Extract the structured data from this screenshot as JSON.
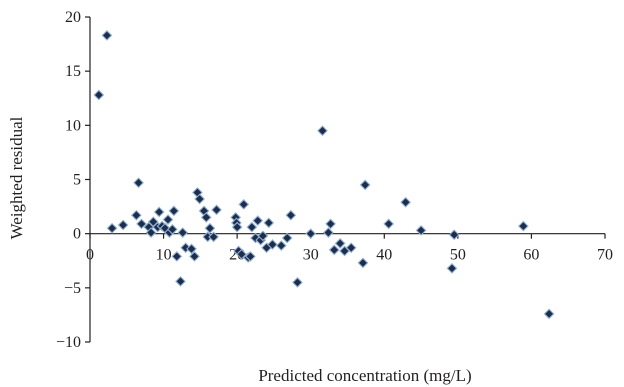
{
  "chart_data": {
    "type": "scatter",
    "title": "",
    "xlabel": "Predicted concentration (mg/L)",
    "ylabel": "Weighted residual",
    "xlim": [
      0,
      70
    ],
    "ylim": [
      -10,
      20
    ],
    "x_ticks": [
      0,
      10,
      20,
      30,
      40,
      50,
      60,
      70
    ],
    "y_ticks": [
      20,
      15,
      10,
      5,
      0,
      -5,
      -10
    ],
    "y_tick_labels": [
      "20",
      "15",
      "10",
      "5",
      "0",
      "−5",
      "−10"
    ],
    "marker": "diamond",
    "marker_color": "#1f2d4a",
    "marker_edge": "#8fb2d6",
    "series": [
      {
        "points": [
          [
            1.2,
            12.8
          ],
          [
            2.3,
            18.3
          ],
          [
            3.0,
            0.5
          ],
          [
            4.5,
            0.8
          ],
          [
            6.3,
            1.7
          ],
          [
            6.6,
            4.7
          ],
          [
            7.0,
            0.9
          ],
          [
            8.0,
            0.6
          ],
          [
            8.3,
            0.1
          ],
          [
            8.6,
            1.1
          ],
          [
            9.2,
            0.6
          ],
          [
            9.4,
            2.0
          ],
          [
            9.8,
            0.7
          ],
          [
            10.2,
            0.5
          ],
          [
            10.6,
            1.3
          ],
          [
            10.8,
            0.1
          ],
          [
            11.2,
            0.4
          ],
          [
            11.4,
            2.1
          ],
          [
            11.8,
            -2.1
          ],
          [
            12.3,
            -4.4
          ],
          [
            12.6,
            0.1
          ],
          [
            13.0,
            -1.3
          ],
          [
            13.8,
            -1.4
          ],
          [
            14.2,
            -2.1
          ],
          [
            14.6,
            3.8
          ],
          [
            14.9,
            3.2
          ],
          [
            15.5,
            2.1
          ],
          [
            15.8,
            1.5
          ],
          [
            16.0,
            -0.3
          ],
          [
            16.3,
            0.5
          ],
          [
            16.8,
            -0.3
          ],
          [
            17.2,
            2.2
          ],
          [
            19.8,
            1.5
          ],
          [
            19.9,
            1.0
          ],
          [
            20.0,
            0.6
          ],
          [
            20.2,
            -1.6
          ],
          [
            20.6,
            -1.9
          ],
          [
            20.9,
            2.7
          ],
          [
            21.5,
            -2.2
          ],
          [
            21.8,
            -2.1
          ],
          [
            22.0,
            0.6
          ],
          [
            22.5,
            -0.4
          ],
          [
            22.8,
            1.2
          ],
          [
            23.2,
            -0.6
          ],
          [
            23.5,
            -0.2
          ],
          [
            24.0,
            -1.3
          ],
          [
            24.3,
            1.0
          ],
          [
            24.8,
            -1.0
          ],
          [
            26.0,
            -1.1
          ],
          [
            26.8,
            -0.4
          ],
          [
            27.3,
            1.7
          ],
          [
            28.2,
            -4.5
          ],
          [
            30.0,
            0.0
          ],
          [
            31.6,
            9.5
          ],
          [
            32.4,
            0.1
          ],
          [
            32.7,
            0.9
          ],
          [
            33.2,
            -1.5
          ],
          [
            34.0,
            -0.9
          ],
          [
            34.6,
            -1.6
          ],
          [
            35.5,
            -1.3
          ],
          [
            37.1,
            -2.7
          ],
          [
            37.4,
            4.5
          ],
          [
            40.6,
            0.9
          ],
          [
            42.9,
            2.9
          ],
          [
            45.0,
            0.3
          ],
          [
            49.2,
            -3.2
          ],
          [
            49.5,
            -0.1
          ],
          [
            58.9,
            0.7
          ],
          [
            62.4,
            -7.4
          ]
        ]
      }
    ]
  }
}
